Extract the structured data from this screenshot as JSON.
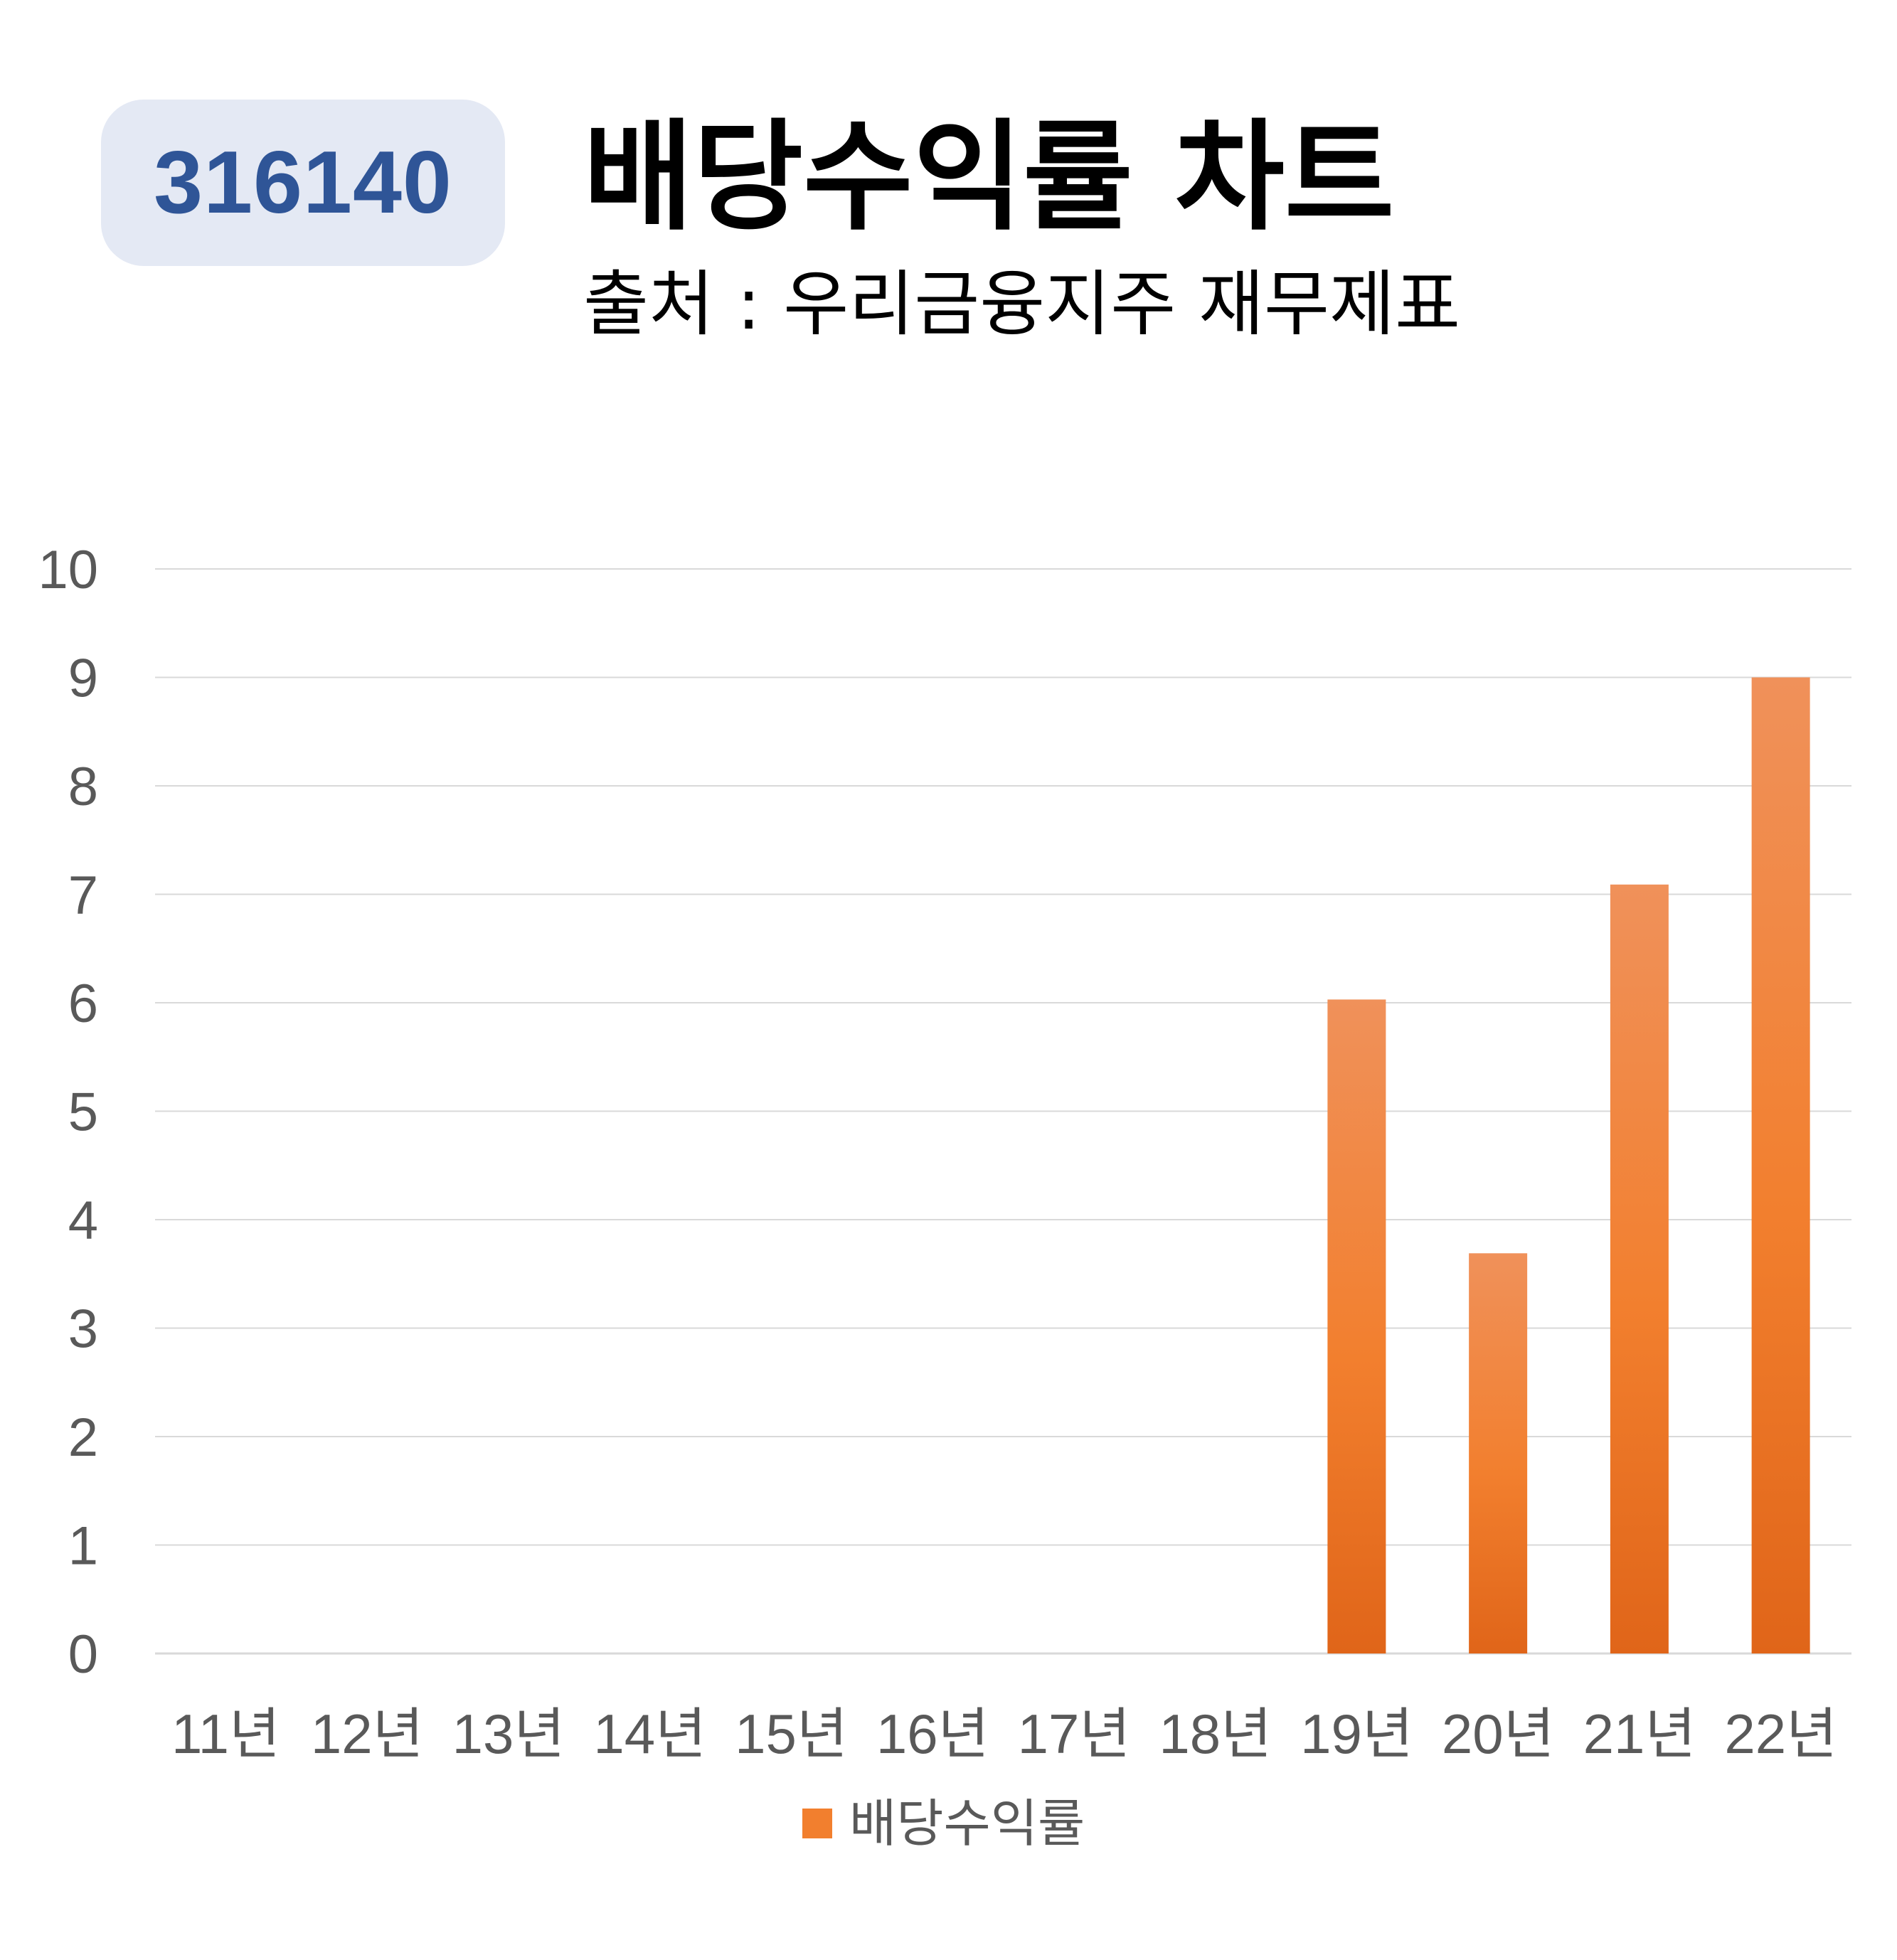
{
  "header": {
    "code": "316140",
    "title": "배당수익률 차트",
    "subtitle": "출처 : 우리금융지주 재무제표"
  },
  "colors": {
    "bar_top": "#f0915a",
    "bar_mid": "#f27f2e",
    "bar_bottom": "#e06519",
    "grid": "#d9d9d9",
    "badge_bg": "#e4e9f4",
    "badge_text": "#2f5597"
  },
  "chart_data": {
    "type": "bar",
    "title": "배당수익률 차트",
    "subtitle": "출처 : 우리금융지주 재무제표",
    "xlabel": "",
    "ylabel": "",
    "categories": [
      "11년",
      "12년",
      "13년",
      "14년",
      "15년",
      "16년",
      "17년",
      "18년",
      "19년",
      "20년",
      "21년",
      "22년"
    ],
    "series": [
      {
        "name": "배당수익률",
        "values": [
          0,
          0,
          0,
          0,
          0,
          0,
          0,
          0,
          6.03,
          3.69,
          7.09,
          9.0
        ]
      }
    ],
    "ylim": [
      0,
      10
    ],
    "yticks": [
      "0",
      "1",
      "2",
      "3",
      "4",
      "5",
      "6",
      "7",
      "8",
      "9",
      "10"
    ],
    "grid": true,
    "legend": "bottom"
  }
}
